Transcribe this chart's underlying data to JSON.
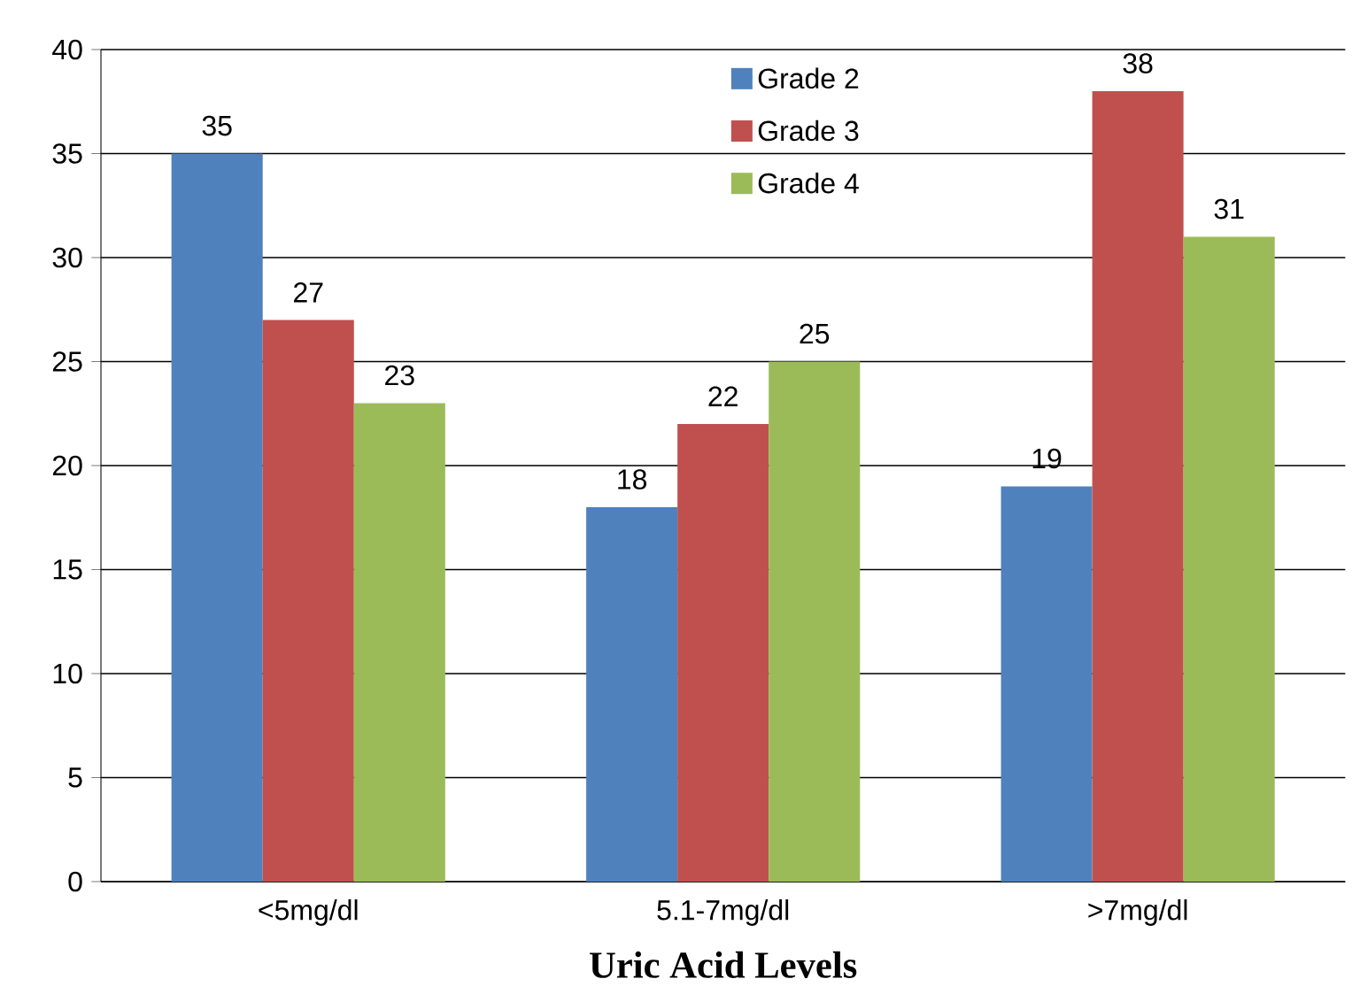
{
  "chart_data": {
    "type": "bar",
    "xlabel": "Uric Acid Levels",
    "categories": [
      "<5mg/dl",
      "5.1-7mg/dl",
      ">7mg/dl"
    ],
    "series": [
      {
        "name": "Grade 2",
        "color": "#4f81bd",
        "values": [
          35,
          18,
          19
        ]
      },
      {
        "name": "Grade 3",
        "color": "#c0504d",
        "values": [
          27,
          22,
          38
        ]
      },
      {
        "name": "Grade 4",
        "color": "#9bbb59",
        "values": [
          23,
          25,
          31
        ]
      }
    ],
    "ylim": [
      0,
      40
    ],
    "yticks": [
      0,
      5,
      10,
      15,
      20,
      25,
      30,
      35,
      40
    ],
    "grid": "y",
    "legend": "top",
    "data_labels": true
  }
}
